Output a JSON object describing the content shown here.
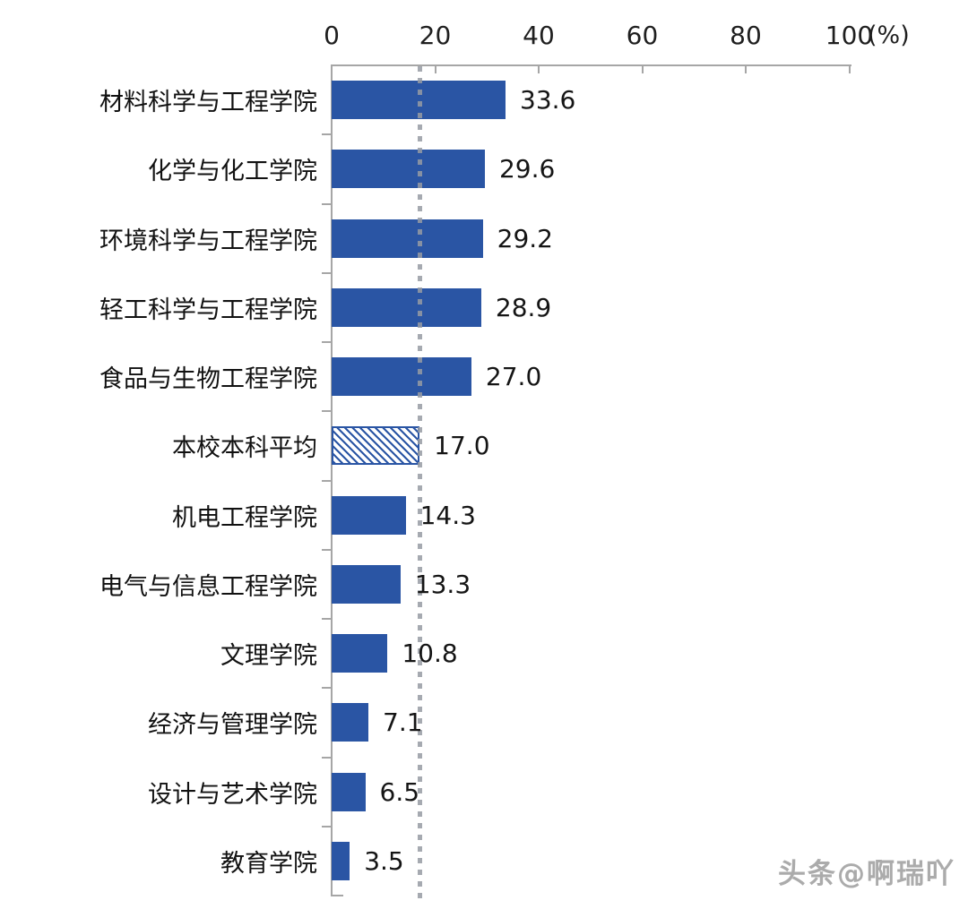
{
  "chart_data": {
    "type": "bar",
    "orientation": "horizontal",
    "title": "",
    "categories": [
      "材料科学与工程学院",
      "化学与化工学院",
      "环境科学与工程学院",
      "轻工科学与工程学院",
      "食品与生物工程学院",
      "本校本科平均",
      "机电工程学院",
      "电气与信息工程学院",
      "文理学院",
      "经济与管理学院",
      "设计与艺术学院",
      "教育学院"
    ],
    "values": [
      33.6,
      29.6,
      29.2,
      28.9,
      27.0,
      17.0,
      14.3,
      13.3,
      10.8,
      7.1,
      6.5,
      3.5
    ],
    "value_labels": [
      "33.6",
      "29.6",
      "29.2",
      "28.9",
      "27.0",
      "17.0",
      "14.3",
      "13.3",
      "10.8",
      "7.1",
      "6.5",
      "3.5"
    ],
    "highlight_index": 5,
    "highlight_category": "本校本科平均",
    "highlight_style": "hatched",
    "reference_line": {
      "value": 17.0,
      "style": "dotted"
    },
    "x_axis": {
      "position": "top",
      "ticks": [
        0,
        20,
        40,
        60,
        80,
        100
      ],
      "range": [
        0,
        100
      ],
      "unit_label": "(%)"
    },
    "grid": false,
    "legend": null,
    "colors": {
      "bar": "#2a55a4",
      "axis": "#a6a6a6",
      "reference_line": "#969ba3",
      "text": "#1f1f1f"
    }
  },
  "watermark": {
    "text": "头条@啊瑞吖"
  }
}
